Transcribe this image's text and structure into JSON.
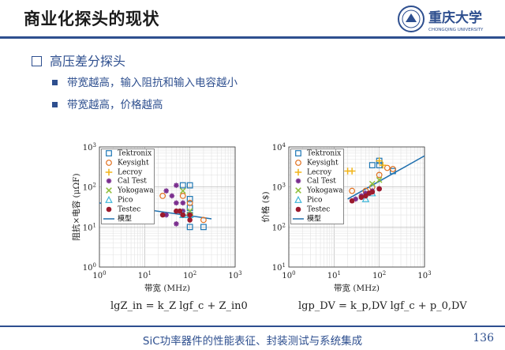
{
  "header": {
    "title": "商业化探头的现状",
    "logo_text": "重庆大学",
    "logo_subtext": "CHONGQING UNIVERSITY"
  },
  "content": {
    "heading": "高压差分探头",
    "points": [
      "带宽越高，输入阻抗和输入电容越小",
      "带宽越高，价格越高"
    ]
  },
  "colors": {
    "Tektronix": "#1f77b4",
    "Keysight": "#e0701f",
    "Lecroy": "#f2b417",
    "Cal Test": "#7a2e8e",
    "Yokogawa": "#8fbf3a",
    "Pico": "#3fb7d9",
    "Testec": "#9c1b2e",
    "model": "#1f6fae"
  },
  "chart_data": [
    {
      "type": "scatter",
      "xscale": "log",
      "yscale": "log",
      "xlabel": "带宽 (MHz)",
      "ylabel": "阻抗×电容 (μΩF)",
      "xlim": [
        1,
        1000
      ],
      "ylim": [
        1,
        1000
      ],
      "xticks": [
        "10^0",
        "10^1",
        "10^2",
        "10^3"
      ],
      "yticks": [
        "10^0",
        "10^1",
        "10^2",
        "10^3"
      ],
      "grid": true,
      "legend_position": "top-left",
      "series": [
        {
          "name": "Tektronix",
          "marker": "square",
          "points": [
            [
              70,
              110
            ],
            [
              100,
              110
            ],
            [
              100,
              50
            ],
            [
              100,
              30
            ],
            [
              100,
              20
            ],
            [
              100,
              10
            ],
            [
              200,
              10
            ]
          ]
        },
        {
          "name": "Keysight",
          "marker": "circle",
          "points": [
            [
              25,
              60
            ],
            [
              70,
              60
            ],
            [
              100,
              40
            ],
            [
              200,
              15
            ]
          ]
        },
        {
          "name": "Lecroy",
          "marker": "plus",
          "points": [
            [
              100,
              20
            ]
          ]
        },
        {
          "name": "Cal Test",
          "marker": "star",
          "points": [
            [
              30,
              80
            ],
            [
              40,
              60
            ],
            [
              50,
              110
            ],
            [
              50,
              40
            ],
            [
              70,
              25
            ],
            [
              30,
              20
            ],
            [
              50,
              12
            ],
            [
              70,
              40
            ]
          ]
        },
        {
          "name": "Yokogawa",
          "marker": "x",
          "points": [
            [
              70,
              80
            ],
            [
              100,
              25
            ]
          ]
        },
        {
          "name": "Pico",
          "marker": "triangle",
          "points": [
            [
              100,
              20
            ],
            [
              70,
              20
            ]
          ]
        },
        {
          "name": "Testec",
          "marker": "dot",
          "points": [
            [
              25,
              20
            ],
            [
              50,
              25
            ],
            [
              60,
              25
            ],
            [
              70,
              20
            ],
            [
              100,
              20
            ],
            [
              100,
              15
            ]
          ]
        }
      ],
      "model": {
        "name": "模型",
        "points": [
          [
            1,
            40
          ],
          [
            300,
            16
          ]
        ]
      },
      "formula": "lgZ_in = k_Z lgf_c + Z_in0"
    },
    {
      "type": "scatter",
      "xscale": "log",
      "yscale": "log",
      "xlabel": "带宽 (MHz)",
      "ylabel": "价格 ($)",
      "xlim": [
        1,
        1000
      ],
      "ylim": [
        10,
        10000
      ],
      "xticks": [
        "10^0",
        "10^1",
        "10^2",
        "10^3"
      ],
      "yticks": [
        "10^1",
        "10^2",
        "10^3",
        "10^4"
      ],
      "grid": true,
      "legend_position": "top-left",
      "series": [
        {
          "name": "Tektronix",
          "marker": "square",
          "points": [
            [
              70,
              3500
            ],
            [
              100,
              3500
            ],
            [
              200,
              2500
            ],
            [
              100,
              4500
            ]
          ]
        },
        {
          "name": "Keysight",
          "marker": "circle",
          "points": [
            [
              25,
              800
            ],
            [
              50,
              800
            ],
            [
              70,
              1000
            ],
            [
              200,
              2800
            ],
            [
              150,
              3000
            ],
            [
              100,
              2000
            ]
          ]
        },
        {
          "name": "Lecroy",
          "marker": "plus",
          "points": [
            [
              20,
              2500
            ],
            [
              25,
              2500
            ],
            [
              100,
              4500
            ],
            [
              120,
              3500
            ]
          ]
        },
        {
          "name": "Cal Test",
          "marker": "star",
          "points": [
            [
              30,
              500
            ],
            [
              40,
              600
            ],
            [
              50,
              700
            ],
            [
              70,
              800
            ],
            [
              100,
              900
            ]
          ]
        },
        {
          "name": "Yokogawa",
          "marker": "x",
          "points": [
            [
              100,
              1500
            ],
            [
              70,
              1200
            ]
          ]
        },
        {
          "name": "Pico",
          "marker": "triangle",
          "points": [
            [
              50,
              500
            ],
            [
              70,
              700
            ]
          ]
        },
        {
          "name": "Testec",
          "marker": "dot",
          "points": [
            [
              25,
              450
            ],
            [
              40,
              550
            ],
            [
              50,
              600
            ],
            [
              60,
              700
            ],
            [
              70,
              750
            ],
            [
              100,
              900
            ]
          ]
        }
      ],
      "model": {
        "name": "模型",
        "points": [
          [
            20,
            500
          ],
          [
            1000,
            6000
          ]
        ]
      },
      "formula": "lgp_DV = k_p,DV lgf_c + p_0,DV"
    }
  ],
  "footer": {
    "text": "SiC功率器件的性能表征、封装测试与系统集成",
    "page": "136"
  }
}
